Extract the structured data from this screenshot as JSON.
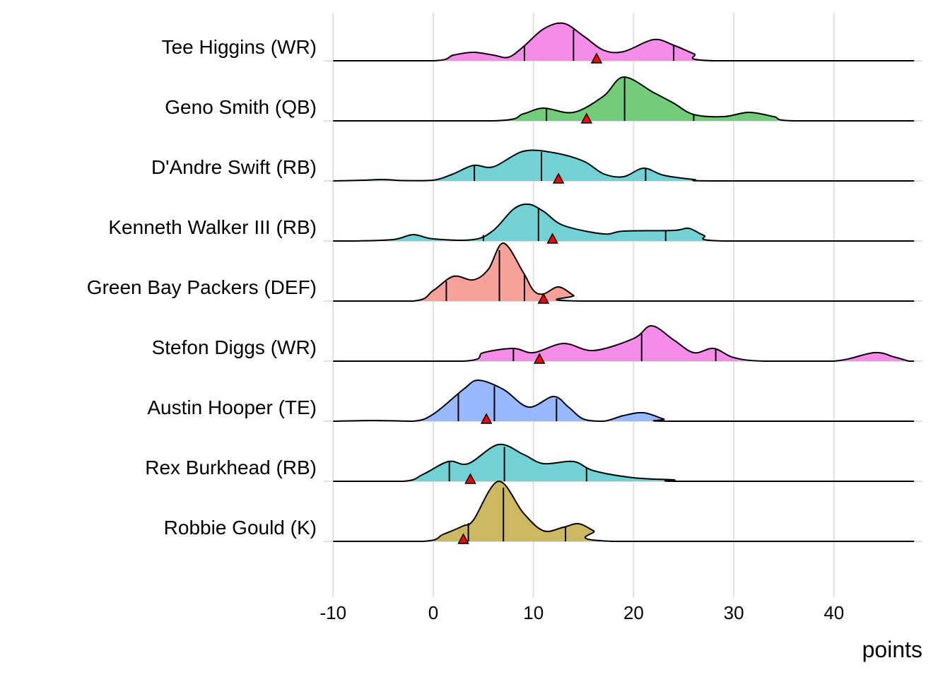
{
  "chart_data": {
    "type": "ridgeline",
    "title": "",
    "xlabel": "points",
    "ylabel": "",
    "xlim": [
      -11,
      48.6
    ],
    "xticks": [
      -10,
      0,
      10,
      20,
      30,
      40
    ],
    "xtick_labels": [
      "-10",
      "0",
      "10",
      "20",
      "30",
      "40"
    ],
    "grid": true,
    "marker_color": "#FF0000",
    "series": [
      {
        "name": "Tee Higgins (WR)",
        "color": "#F58CE8",
        "quantiles": [
          9.1,
          14,
          24
        ],
        "marker": 16.3,
        "density": [
          [
            -10,
            0
          ],
          [
            0,
            0
          ],
          [
            2,
            0.08
          ],
          [
            4,
            0.12
          ],
          [
            6,
            0.08
          ],
          [
            7.5,
            0.05
          ],
          [
            9,
            0.2
          ],
          [
            11,
            0.45
          ],
          [
            13,
            0.53
          ],
          [
            15,
            0.35
          ],
          [
            17,
            0.15
          ],
          [
            19,
            0.13
          ],
          [
            22,
            0.3
          ],
          [
            24,
            0.22
          ],
          [
            26,
            0.1
          ],
          [
            28,
            0
          ],
          [
            48,
            0
          ]
        ]
      },
      {
        "name": "Geno Smith (QB)",
        "color": "#73CC7A",
        "quantiles": [
          11.3,
          19.1,
          26
        ],
        "marker": 15.3,
        "density": [
          [
            -10,
            0
          ],
          [
            6,
            0
          ],
          [
            9,
            0.1
          ],
          [
            11,
            0.18
          ],
          [
            14,
            0.12
          ],
          [
            17,
            0.35
          ],
          [
            19,
            0.62
          ],
          [
            22,
            0.4
          ],
          [
            24,
            0.25
          ],
          [
            26,
            0.09
          ],
          [
            29,
            0.06
          ],
          [
            31.5,
            0.12
          ],
          [
            34,
            0.06
          ],
          [
            36,
            0
          ],
          [
            48,
            0
          ]
        ]
      },
      {
        "name": "D'Andre Swift (RB)",
        "color": "#74D1D3",
        "quantiles": [
          4.1,
          10.8,
          21.2
        ],
        "marker": 12.5,
        "density": [
          [
            -10,
            0
          ],
          [
            -7,
            0.01
          ],
          [
            -5,
            0.02
          ],
          [
            -3,
            0.005
          ],
          [
            0,
            0.01
          ],
          [
            2,
            0.1
          ],
          [
            4,
            0.22
          ],
          [
            6,
            0.2
          ],
          [
            9,
            0.42
          ],
          [
            12,
            0.4
          ],
          [
            15,
            0.28
          ],
          [
            17,
            0.1
          ],
          [
            19,
            0.06
          ],
          [
            21,
            0.18
          ],
          [
            23,
            0.08
          ],
          [
            26,
            0.02
          ],
          [
            28,
            0
          ],
          [
            48,
            0
          ]
        ]
      },
      {
        "name": "Kenneth Walker III (RB)",
        "color": "#74D1D3",
        "quantiles": [
          5,
          10.5,
          23.2
        ],
        "marker": 11.9,
        "density": [
          [
            -10,
            0
          ],
          [
            -8,
            0
          ],
          [
            -4,
            0.02
          ],
          [
            -2,
            0.09
          ],
          [
            0,
            0.03
          ],
          [
            4,
            0.02
          ],
          [
            6,
            0.15
          ],
          [
            8,
            0.45
          ],
          [
            9.5,
            0.52
          ],
          [
            11,
            0.42
          ],
          [
            13,
            0.22
          ],
          [
            17,
            0.1
          ],
          [
            19,
            0.14
          ],
          [
            24,
            0.15
          ],
          [
            25.5,
            0.18
          ],
          [
            27,
            0.08
          ],
          [
            29,
            0
          ],
          [
            48,
            0
          ]
        ]
      },
      {
        "name": "Green Bay Packers (DEF)",
        "color": "#F8A09A",
        "quantiles": [
          1.3,
          6.6,
          9.1
        ],
        "marker": 11,
        "density": [
          [
            -10,
            0
          ],
          [
            -2,
            0
          ],
          [
            0,
            0.15
          ],
          [
            2,
            0.35
          ],
          [
            4,
            0.3
          ],
          [
            5.5,
            0.45
          ],
          [
            7,
            0.82
          ],
          [
            9,
            0.4
          ],
          [
            10,
            0.15
          ],
          [
            11,
            0.1
          ],
          [
            12.5,
            0.2
          ],
          [
            14,
            0.08
          ],
          [
            15,
            0
          ],
          [
            48,
            0
          ]
        ]
      },
      {
        "name": "Stefon Diggs (WR)",
        "color": "#F58CE8",
        "quantiles": [
          8,
          20.8,
          28.2
        ],
        "marker": 10.6,
        "density": [
          [
            -10,
            0
          ],
          [
            3,
            0
          ],
          [
            5,
            0.12
          ],
          [
            8,
            0.18
          ],
          [
            10,
            0.12
          ],
          [
            13,
            0.25
          ],
          [
            16,
            0.15
          ],
          [
            20,
            0.32
          ],
          [
            21.8,
            0.5
          ],
          [
            24,
            0.3
          ],
          [
            26,
            0.12
          ],
          [
            28,
            0.18
          ],
          [
            30,
            0.05
          ],
          [
            33,
            0
          ],
          [
            40,
            0
          ],
          [
            44,
            0.12
          ],
          [
            46,
            0.06
          ],
          [
            47.5,
            0
          ],
          [
            48,
            0
          ]
        ]
      },
      {
        "name": "Austin Hooper (TE)",
        "color": "#98B8FF",
        "quantiles": [
          2.5,
          6.1,
          12.3
        ],
        "marker": 5.3,
        "density": [
          [
            -10,
            0
          ],
          [
            -6,
            0.01
          ],
          [
            -2,
            0
          ],
          [
            0,
            0.1
          ],
          [
            3,
            0.45
          ],
          [
            4.5,
            0.58
          ],
          [
            7,
            0.45
          ],
          [
            9.5,
            0.2
          ],
          [
            12,
            0.35
          ],
          [
            13.5,
            0.2
          ],
          [
            15,
            0.03
          ],
          [
            17,
            0
          ],
          [
            19,
            0.08
          ],
          [
            21,
            0.12
          ],
          [
            23,
            0.03
          ],
          [
            24,
            0
          ],
          [
            48,
            0
          ]
        ]
      },
      {
        "name": "Rex Burkhead (RB)",
        "color": "#74D1D3",
        "quantiles": [
          1.6,
          7.1,
          15.3
        ],
        "marker": 3.7,
        "density": [
          [
            -10,
            0
          ],
          [
            -3,
            0
          ],
          [
            -1,
            0.1
          ],
          [
            1.5,
            0.28
          ],
          [
            3.5,
            0.25
          ],
          [
            6.5,
            0.52
          ],
          [
            9,
            0.38
          ],
          [
            11,
            0.25
          ],
          [
            14,
            0.28
          ],
          [
            16,
            0.15
          ],
          [
            20,
            0.05
          ],
          [
            24,
            0.02
          ],
          [
            25,
            0
          ],
          [
            48,
            0
          ]
        ]
      },
      {
        "name": "Robbie Gould (K)",
        "color": "#CDB862",
        "quantiles": [
          3.5,
          7.0,
          13.2
        ],
        "marker": 3.0,
        "density": [
          [
            -10,
            0
          ],
          [
            -1,
            0
          ],
          [
            1,
            0.1
          ],
          [
            3,
            0.22
          ],
          [
            4,
            0.3
          ],
          [
            6.5,
            0.85
          ],
          [
            9,
            0.4
          ],
          [
            11,
            0.15
          ],
          [
            13,
            0.2
          ],
          [
            14.5,
            0.25
          ],
          [
            16,
            0.15
          ],
          [
            18,
            0
          ],
          [
            48,
            0
          ]
        ]
      }
    ]
  }
}
